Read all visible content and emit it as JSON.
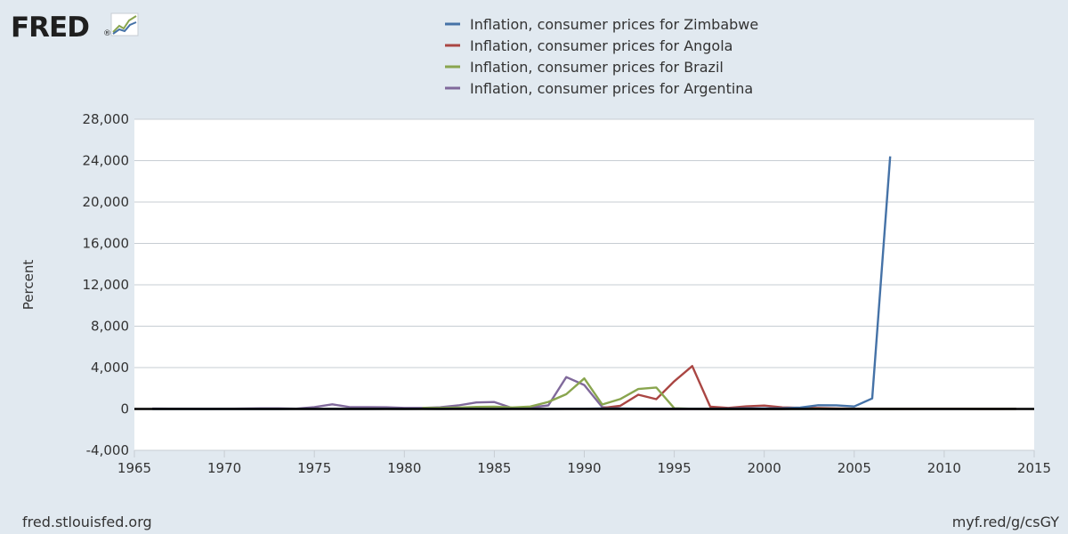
{
  "branding": {
    "logo_text": "FRED",
    "registered_mark": "®",
    "source_url": "fred.stlouisfed.org",
    "short_url": "myf.red/g/csGY"
  },
  "colors": {
    "background": "#e1e9f0",
    "plot_background": "#ffffff",
    "grid": "#c7cdd3",
    "zero_line": "#000000",
    "text": "#333333"
  },
  "chart_data": {
    "type": "line",
    "title": "",
    "xlabel": "",
    "ylabel": "Percent",
    "xlim": [
      1965,
      2015
    ],
    "ylim": [
      -4000,
      28000
    ],
    "x_ticks": [
      1965,
      1970,
      1975,
      1980,
      1985,
      1990,
      1995,
      2000,
      2005,
      2010,
      2015
    ],
    "x_tick_labels": [
      "1965",
      "1970",
      "1975",
      "1980",
      "1985",
      "1990",
      "1995",
      "2000",
      "2005",
      "2010",
      "2015"
    ],
    "y_ticks": [
      -4000,
      0,
      4000,
      8000,
      12000,
      16000,
      20000,
      24000,
      28000
    ],
    "y_tick_labels": [
      "-4,000",
      "0",
      "4,000",
      "8,000",
      "12,000",
      "16,000",
      "20,000",
      "24,000",
      "28,000"
    ],
    "grid": true,
    "legend_position": "top-center",
    "series": [
      {
        "name": "Inflation, consumer prices for Zimbabwe",
        "color": "#4572a7",
        "points": [
          [
            1966,
            0
          ],
          [
            1967,
            2
          ],
          [
            1968,
            2
          ],
          [
            1969,
            3
          ],
          [
            1970,
            2
          ],
          [
            1971,
            3
          ],
          [
            1972,
            3
          ],
          [
            1973,
            3
          ],
          [
            1974,
            7
          ],
          [
            1975,
            10
          ],
          [
            1976,
            11
          ],
          [
            1977,
            10
          ],
          [
            1978,
            10
          ],
          [
            1979,
            13
          ],
          [
            1980,
            5
          ],
          [
            1981,
            13
          ],
          [
            1982,
            11
          ],
          [
            1983,
            23
          ],
          [
            1984,
            20
          ],
          [
            1985,
            8
          ],
          [
            1986,
            15
          ],
          [
            1987,
            13
          ],
          [
            1988,
            8
          ],
          [
            1989,
            13
          ],
          [
            1990,
            17
          ],
          [
            1991,
            48
          ],
          [
            1992,
            42
          ],
          [
            1993,
            27
          ],
          [
            1994,
            22
          ],
          [
            1995,
            23
          ],
          [
            1996,
            21
          ],
          [
            1997,
            19
          ],
          [
            1998,
            32
          ],
          [
            1999,
            58
          ],
          [
            2000,
            56
          ],
          [
            2001,
            73
          ],
          [
            2002,
            133
          ],
          [
            2003,
            365
          ],
          [
            2004,
            350
          ],
          [
            2005,
            240
          ],
          [
            2006,
            1016
          ],
          [
            2007,
            24411
          ]
        ]
      },
      {
        "name": "Inflation, consumer prices for Angola",
        "color": "#aa4643",
        "points": [
          [
            1991,
            83
          ],
          [
            1992,
            299
          ],
          [
            1993,
            1379
          ],
          [
            1994,
            949
          ],
          [
            1995,
            2672
          ],
          [
            1996,
            4146
          ],
          [
            1997,
            221
          ],
          [
            1998,
            107
          ],
          [
            1999,
            248
          ],
          [
            2000,
            325
          ],
          [
            2001,
            153
          ],
          [
            2002,
            109
          ],
          [
            2003,
            98
          ],
          [
            2004,
            44
          ],
          [
            2005,
            23
          ],
          [
            2006,
            13
          ],
          [
            2007,
            12
          ],
          [
            2008,
            12
          ],
          [
            2009,
            14
          ],
          [
            2010,
            14
          ],
          [
            2011,
            13
          ],
          [
            2012,
            10
          ],
          [
            2013,
            9
          ],
          [
            2014,
            7
          ]
        ]
      },
      {
        "name": "Inflation, consumer prices for Brazil",
        "color": "#89a54e",
        "points": [
          [
            1981,
            101
          ],
          [
            1982,
            101
          ],
          [
            1983,
            136
          ],
          [
            1984,
            197
          ],
          [
            1985,
            227
          ],
          [
            1986,
            145
          ],
          [
            1987,
            230
          ],
          [
            1988,
            682
          ],
          [
            1989,
            1431
          ],
          [
            1990,
            2948
          ],
          [
            1991,
            433
          ],
          [
            1992,
            952
          ],
          [
            1993,
            1928
          ],
          [
            1994,
            2076
          ],
          [
            1995,
            66
          ],
          [
            1996,
            16
          ],
          [
            1997,
            7
          ],
          [
            1998,
            3
          ],
          [
            1999,
            5
          ],
          [
            2000,
            7
          ],
          [
            2001,
            7
          ],
          [
            2002,
            8
          ],
          [
            2003,
            15
          ],
          [
            2004,
            7
          ],
          [
            2005,
            7
          ],
          [
            2006,
            4
          ],
          [
            2007,
            4
          ],
          [
            2008,
            6
          ],
          [
            2009,
            5
          ],
          [
            2010,
            5
          ],
          [
            2011,
            7
          ],
          [
            2012,
            5
          ],
          [
            2013,
            6
          ],
          [
            2014,
            6
          ]
        ]
      },
      {
        "name": "Inflation, consumer prices for Argentina",
        "color": "#80699b",
        "points": [
          [
            1966,
            32
          ],
          [
            1967,
            29
          ],
          [
            1968,
            16
          ],
          [
            1969,
            8
          ],
          [
            1970,
            14
          ],
          [
            1971,
            35
          ],
          [
            1972,
            59
          ],
          [
            1973,
            61
          ],
          [
            1974,
            23
          ],
          [
            1975,
            183
          ],
          [
            1976,
            444
          ],
          [
            1977,
            176
          ],
          [
            1978,
            176
          ],
          [
            1979,
            160
          ],
          [
            1980,
            101
          ],
          [
            1981,
            105
          ],
          [
            1982,
            165
          ],
          [
            1983,
            344
          ],
          [
            1984,
            627
          ],
          [
            1985,
            672
          ],
          [
            1986,
            90
          ],
          [
            1987,
            131
          ],
          [
            1988,
            343
          ],
          [
            1989,
            3080
          ],
          [
            1990,
            2314
          ],
          [
            1991,
            172
          ],
          [
            1992,
            25
          ],
          [
            1993,
            11
          ],
          [
            1994,
            4
          ],
          [
            1995,
            3
          ],
          [
            1996,
            0
          ],
          [
            1997,
            1
          ],
          [
            1998,
            1
          ],
          [
            1999,
            -1
          ],
          [
            2000,
            -1
          ],
          [
            2001,
            -1
          ],
          [
            2002,
            26
          ],
          [
            2003,
            13
          ],
          [
            2004,
            4
          ],
          [
            2005,
            10
          ],
          [
            2006,
            11
          ],
          [
            2007,
            9
          ],
          [
            2008,
            9
          ],
          [
            2009,
            6
          ],
          [
            2010,
            10
          ],
          [
            2011,
            10
          ],
          [
            2012,
            10
          ],
          [
            2013,
            11
          ],
          [
            2014,
            22
          ]
        ]
      }
    ]
  }
}
